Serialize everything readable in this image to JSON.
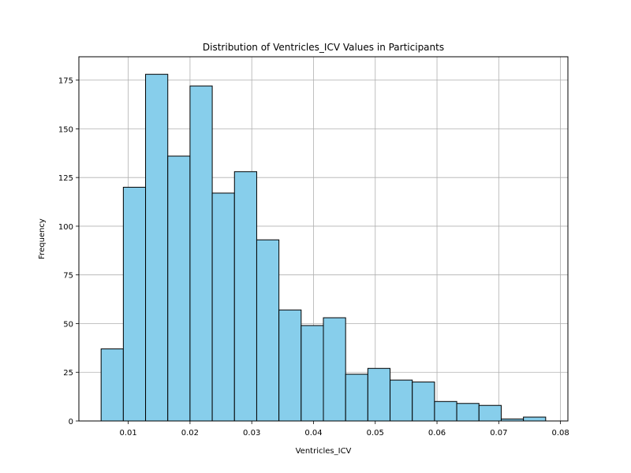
{
  "chart_data": {
    "type": "bar",
    "title": "Distribution of Ventricles_ICV Values in Participants",
    "xlabel": "Ventricles_ICV",
    "ylabel": "Frequency",
    "bin_edges": [
      0.0056,
      0.0092,
      0.0128,
      0.0164,
      0.02,
      0.0236,
      0.0272,
      0.0308,
      0.0344,
      0.038,
      0.0416,
      0.0452,
      0.0488,
      0.0524,
      0.056,
      0.0596,
      0.0632,
      0.0668,
      0.0704,
      0.074,
      0.0776
    ],
    "values": [
      37,
      120,
      178,
      136,
      172,
      117,
      128,
      93,
      57,
      49,
      53,
      24,
      27,
      21,
      20,
      10,
      9,
      8,
      1,
      2
    ],
    "xlim": [
      0.002,
      0.0812
    ],
    "ylim": [
      0,
      187
    ],
    "xticks": [
      0.01,
      0.02,
      0.03,
      0.04,
      0.05,
      0.06,
      0.07,
      0.08
    ],
    "xtick_labels": [
      "0.01",
      "0.02",
      "0.03",
      "0.04",
      "0.05",
      "0.06",
      "0.07",
      "0.08"
    ],
    "yticks": [
      0,
      25,
      50,
      75,
      100,
      125,
      150,
      175
    ],
    "ytick_labels": [
      "0",
      "25",
      "50",
      "75",
      "100",
      "125",
      "150",
      "175"
    ],
    "grid": true,
    "colors": {
      "bar_fill": "#87ceeb",
      "bar_edge": "#000000",
      "grid": "#b0b0b0"
    }
  }
}
